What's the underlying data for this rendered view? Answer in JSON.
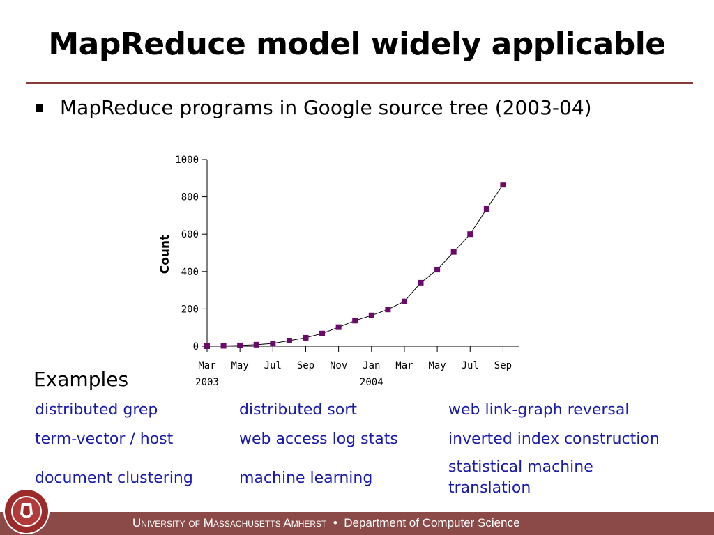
{
  "slide": {
    "title": "MapReduce model widely applicable",
    "bullet": "MapReduce programs in Google source tree (2003-04)",
    "examples_heading": "Examples",
    "examples": [
      [
        "distributed grep",
        "distributed sort",
        "web link-graph reversal"
      ],
      [
        "term-vector / host",
        "web access log stats",
        "inverted index construction"
      ],
      [
        "document clustering",
        "machine learning",
        "statistical machine translation"
      ]
    ],
    "footer": {
      "university": "University of Massachusetts Amherst",
      "separator": "•",
      "department": "Department of Computer Science"
    },
    "colors": {
      "accent": "#8b3a3a",
      "footer": "#8b4a47",
      "examples": "#1a1aa8",
      "marker": "#6b0a6b"
    }
  },
  "chart_data": {
    "type": "line",
    "title": "",
    "xlabel": "",
    "ylabel": "Count",
    "ylim": [
      0,
      1000
    ],
    "yticks": [
      0,
      200,
      400,
      600,
      800,
      1000
    ],
    "xticks": [
      {
        "month": 0,
        "label": "Mar",
        "sublabel": "2003"
      },
      {
        "month": 2,
        "label": "May",
        "sublabel": ""
      },
      {
        "month": 4,
        "label": "Jul",
        "sublabel": ""
      },
      {
        "month": 6,
        "label": "Sep",
        "sublabel": ""
      },
      {
        "month": 8,
        "label": "Nov",
        "sublabel": ""
      },
      {
        "month": 10,
        "label": "Jan",
        "sublabel": "2004"
      },
      {
        "month": 12,
        "label": "Mar",
        "sublabel": ""
      },
      {
        "month": 14,
        "label": "May",
        "sublabel": ""
      },
      {
        "month": 16,
        "label": "Jul",
        "sublabel": ""
      },
      {
        "month": 18,
        "label": "Sep",
        "sublabel": ""
      }
    ],
    "xlim": [
      0,
      19
    ],
    "x": [
      0,
      1,
      2,
      3,
      4,
      5,
      6,
      7,
      8,
      9,
      10,
      11,
      12,
      13,
      14,
      15,
      16,
      17,
      18
    ],
    "values": [
      0,
      2,
      4,
      8,
      15,
      30,
      45,
      68,
      102,
      137,
      165,
      197,
      240,
      340,
      410,
      505,
      600,
      735,
      865
    ],
    "grid": false
  }
}
